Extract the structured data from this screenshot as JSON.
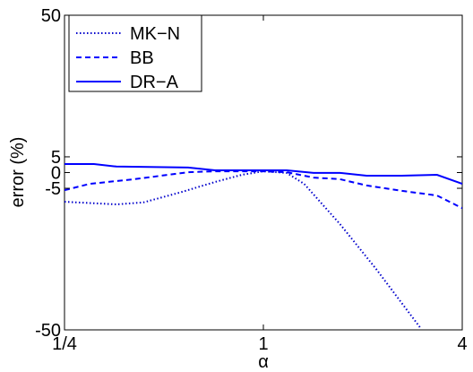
{
  "chart_data": {
    "type": "line",
    "xlabel": "α",
    "ylabel": "error (%)",
    "xscale": "log",
    "xlim": [
      0.25,
      4
    ],
    "xticks": [
      {
        "value": 0.25,
        "label": "1/4"
      },
      1,
      4
    ],
    "ylim": [
      -50,
      50
    ],
    "yticks": [
      -50,
      -5,
      0,
      5,
      50
    ],
    "legend": "upper left",
    "series": [
      {
        "name": "MK−N",
        "color": "#0000cc",
        "linestyle": "dotted",
        "x": [
          0.25,
          0.359,
          0.433,
          0.556,
          0.714,
          0.861,
          1,
          1.176,
          1.329,
          1.707,
          2.192,
          2.993
        ],
        "values": [
          -9.3,
          -10.1,
          -9.5,
          -6.4,
          -3,
          -0.7,
          0.4,
          -0.1,
          -3.6,
          -16.4,
          -30.6,
          -49.5
        ]
      },
      {
        "name": "BB",
        "color": "#0000ff",
        "linestyle": "dashed",
        "x": [
          0.25,
          0.298,
          0.407,
          0.592,
          0.714,
          1,
          1.176,
          1.419,
          1.707,
          2.053,
          2.624,
          3.354,
          4
        ],
        "values": [
          -5.6,
          -3.6,
          -2.1,
          0.1,
          0.4,
          0.4,
          0.1,
          -1.6,
          -2.1,
          -4.1,
          -5.8,
          -7.3,
          -11.3
        ]
      },
      {
        "name": "DR−A",
        "color": "#0000ff",
        "linestyle": "solid",
        "x": [
          0.25,
          0.307,
          0.359,
          0.592,
          0.714,
          1,
          1.176,
          1.419,
          1.707,
          2.053,
          2.624,
          3.354,
          4
        ],
        "values": [
          2.7,
          2.7,
          1.9,
          1.6,
          0.7,
          0.7,
          0.7,
          -0.1,
          -0.1,
          -1,
          -1,
          -0.7,
          -3.6
        ]
      }
    ]
  }
}
